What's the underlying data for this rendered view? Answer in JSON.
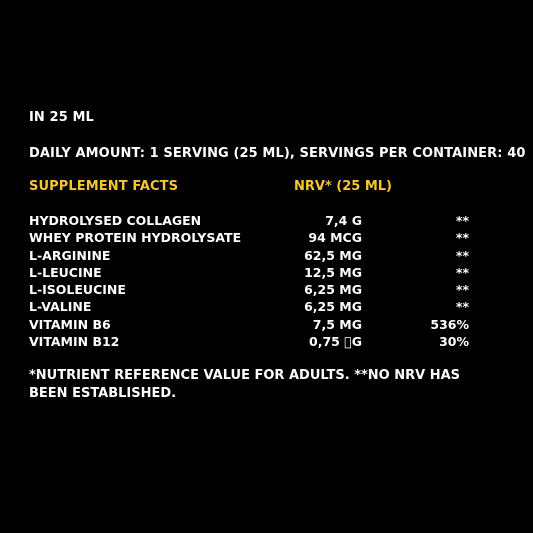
{
  "serving_note": "IN 25 ML",
  "daily_amount": "DAILY AMOUNT: 1 SERVING (25 ML), SERVINGS PER CONTAINER: 40",
  "table_header": {
    "left": "SUPPLEMENT FACTS",
    "right": "NRV* (25 ML)"
  },
  "rows": [
    {
      "name": "HYDROLYSED COLLAGEN",
      "amount": "7,4 G",
      "nrv": "**"
    },
    {
      "name": "WHEY PROTEIN HYDROLYSATE",
      "amount": "94 MCG",
      "nrv": "**"
    },
    {
      "name": "L-ARGININE",
      "amount": "62,5 MG",
      "nrv": "**"
    },
    {
      "name": "L-LEUCINE",
      "amount": "12,5 MG",
      "nrv": "**"
    },
    {
      "name": "L-ISOLEUCINE",
      "amount": "6,25 MG",
      "nrv": "**"
    },
    {
      "name": "L-VALINE",
      "amount": "6,25 MG",
      "nrv": "**"
    },
    {
      "name": "VITAMIN B6",
      "amount": "7,5 MG",
      "nrv": "536%"
    },
    {
      "name": "VITAMIN B12",
      "amount": "0,75 \u0000G",
      "nrv": "30%"
    }
  ],
  "footnote": "*NUTRIENT REFERENCE VALUE FOR ADULTS. **NO NRV HAS BEEN ESTABLISHED.",
  "colors": {
    "background": "#000000",
    "text": "#ffffff",
    "accent": "#f7c531"
  }
}
